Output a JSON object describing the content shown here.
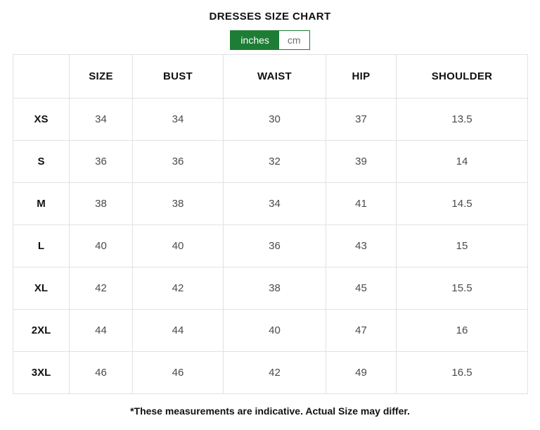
{
  "page": {
    "title": "DRESSES SIZE CHART",
    "footnote": "*These measurements are indicative. Actual Size may differ."
  },
  "unit_toggle": {
    "selected": "inches",
    "options": [
      {
        "label": "inches",
        "selected": true
      },
      {
        "label": "cm",
        "selected": false
      }
    ]
  },
  "colors": {
    "accent_green": "#1e7d35",
    "table_border": "#e2e2e2",
    "value_text": "#4a4a4a",
    "heading_text": "#111111"
  },
  "chart_data": {
    "type": "table",
    "unit": "inches",
    "columns": [
      "",
      "SIZE",
      "BUST",
      "WAIST",
      "HIP",
      "SHOULDER"
    ],
    "rows": [
      {
        "label": "XS",
        "values": [
          "34",
          "34",
          "30",
          "37",
          "13.5"
        ]
      },
      {
        "label": "S",
        "values": [
          "36",
          "36",
          "32",
          "39",
          "14"
        ]
      },
      {
        "label": "M",
        "values": [
          "38",
          "38",
          "34",
          "41",
          "14.5"
        ]
      },
      {
        "label": "L",
        "values": [
          "40",
          "40",
          "36",
          "43",
          "15"
        ]
      },
      {
        "label": "XL",
        "values": [
          "42",
          "42",
          "38",
          "45",
          "15.5"
        ]
      },
      {
        "label": "2XL",
        "values": [
          "44",
          "44",
          "40",
          "47",
          "16"
        ]
      },
      {
        "label": "3XL",
        "values": [
          "46",
          "46",
          "42",
          "49",
          "16.5"
        ]
      }
    ]
  }
}
